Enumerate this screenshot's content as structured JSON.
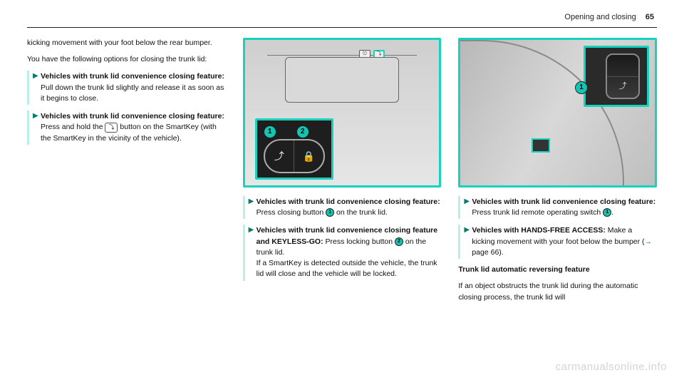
{
  "header": {
    "section": "Opening and closing",
    "pagenum": "65"
  },
  "col1": {
    "intro1": "kicking movement with your foot below the rear bumper.",
    "intro2": "You have the following options for closing the trunk lid:",
    "b1_bold": "Vehicles with trunk lid convenience closing feature:",
    "b1_rest": " Pull down the trunk lid slightly and release it as soon as it begins to close.",
    "b2_bold": "Vehicles with trunk lid convenience closing feature:",
    "b2_rest_a": " Press and hold the ",
    "b2_rest_b": " button on the SmartKey (with the SmartKey in the vicinity of the vehicle).",
    "key_icon": "⤵"
  },
  "col2": {
    "fig": {
      "border_color": "#17d2be",
      "bg_from": "#cfcfcf",
      "bg_to": "#e6e6e6",
      "callout1": "1",
      "callout2": "2",
      "mini_a_label": "⎋",
      "mini_b_label": "⤵"
    },
    "b1_bold": "Vehicles with trunk lid convenience closing feature:",
    "b1_rest_a": " Press closing button ",
    "b1_rest_b": " on the trunk lid.",
    "b2_bold": "Vehicles with trunk lid convenience closing feature and KEYLESS-GO:",
    "b2_rest_a": " Press locking button ",
    "b2_rest_b": " on the trunk lid.",
    "b2_tail": "If a SmartKey is detected outside the vehicle, the trunk lid will close and the vehicle will be locked."
  },
  "col3": {
    "fig": {
      "callout1": "1",
      "border_color": "#17d2be"
    },
    "b1_bold": "Vehicles with trunk lid convenience closing feature:",
    "b1_rest_a": " Press trunk lid remote operating switch ",
    "b1_rest_b": ".",
    "b2_bold": "Vehicles with HANDS-FREE ACCESS:",
    "b2_rest_a": " Make a kicking movement with your foot below the bumper (",
    "b2_pageref": " page 66).",
    "subhead": "Trunk lid automatic reversing feature",
    "subbody": "If an object obstructs the trunk lid during the automatic closing process, the trunk lid will"
  },
  "watermark": "carmanualsonline.info"
}
